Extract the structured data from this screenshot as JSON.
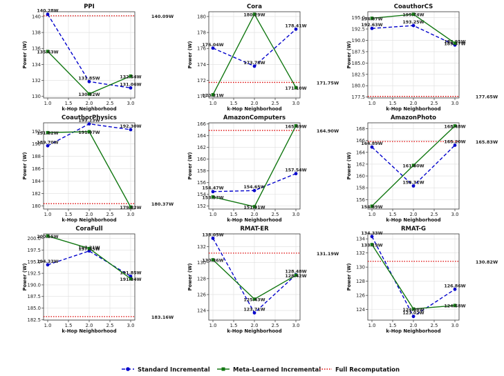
{
  "colors": {
    "standard": "#0000cc",
    "meta": "#117711",
    "full": "#dd0000",
    "grid": "#dddddd",
    "axis": "#333333"
  },
  "legend": {
    "standard": "Standard Incremental",
    "meta": "Meta-Learned Incremental",
    "full": "Full Recomputation"
  },
  "chart_data": [
    {
      "type": "line",
      "title": "PPI",
      "xlabel": "k-Hop Neighborhood",
      "ylabel": "Power (W)",
      "x": [
        1,
        2,
        3
      ],
      "xlim": [
        0.9,
        3.1
      ],
      "ylim": [
        129.8,
        140.6
      ],
      "xticks": [
        "1.0",
        "1.5",
        "2.0",
        "2.5",
        "3.0"
      ],
      "yticks": [
        "130",
        "132",
        "134",
        "136",
        "138",
        "140"
      ],
      "series": [
        {
          "name": "Standard Incremental",
          "values": [
            140.28,
            131.85,
            131.06
          ],
          "labels": [
            "140.28W",
            "131.85W",
            "131.06W"
          ]
        },
        {
          "name": "Meta-Learned Incremental",
          "values": [
            135.63,
            130.32,
            132.54
          ],
          "labels": [
            "135.63W",
            "130.32W",
            "132.54W"
          ]
        }
      ],
      "full_recomputation": 140.09,
      "full_label": "140.09W"
    },
    {
      "type": "line",
      "title": "Cora",
      "xlabel": "k-Hop Neighborhood",
      "ylabel": "Power (W)",
      "x": [
        1,
        2,
        3
      ],
      "xlim": [
        0.9,
        3.1
      ],
      "ylim": [
        169.8,
        180.6
      ],
      "xticks": [
        "1.0",
        "1.5",
        "2.0",
        "2.5",
        "3.0"
      ],
      "yticks": [
        "170",
        "172",
        "174",
        "176",
        "178",
        "180"
      ],
      "series": [
        {
          "name": "Standard Incremental",
          "values": [
            176.04,
            173.78,
            178.41
          ],
          "labels": [
            "176.04W",
            "173.78W",
            "178.41W"
          ]
        },
        {
          "name": "Meta-Learned Incremental",
          "values": [
            170.21,
            180.29,
            171.1
          ],
          "labels": [
            "170.21W",
            "180.29W",
            "171.10W"
          ]
        }
      ],
      "full_recomputation": 171.75,
      "full_label": "171.75W"
    },
    {
      "type": "line",
      "title": "CoauthorCS",
      "xlabel": "k-Hop Neighborhood",
      "ylabel": "Power (W)",
      "x": [
        1,
        2,
        3
      ],
      "xlim": [
        0.9,
        3.1
      ],
      "ylim": [
        177.3,
        196.3
      ],
      "xticks": [
        "1.0",
        "1.5",
        "2.0",
        "2.5",
        "3.0"
      ],
      "yticks": [
        "177.5",
        "180.0",
        "182.5",
        "185.0",
        "187.5",
        "190.0",
        "192.5",
        "195.0"
      ],
      "series": [
        {
          "name": "Standard Incremental",
          "values": [
            192.63,
            193.25,
            188.95
          ],
          "labels": [
            "192.63W",
            "193.25W",
            "188.95W"
          ]
        },
        {
          "name": "Meta-Learned Incremental",
          "values": [
            194.87,
            195.74,
            189.37
          ],
          "labels": [
            "194.87W",
            "195.74W",
            "189.37W"
          ]
        }
      ],
      "full_recomputation": 177.65,
      "full_label": "177.65W"
    },
    {
      "type": "line",
      "title": "CoauthorPhysics",
      "xlabel": "k-Hop Neighborhood",
      "ylabel": "Power (W)",
      "x": [
        1,
        2,
        3
      ],
      "xlim": [
        0.9,
        3.1
      ],
      "ylim": [
        179.5,
        193.4
      ],
      "xticks": [
        "1.0",
        "1.5",
        "2.0",
        "2.5",
        "3.0"
      ],
      "yticks": [
        "180",
        "182",
        "184",
        "186",
        "188",
        "190",
        "192"
      ],
      "series": [
        {
          "name": "Standard Incremental",
          "values": [
            189.7,
            193.23,
            192.3
          ],
          "labels": [
            "189.70W",
            "193.23W",
            "192.30W"
          ]
        },
        {
          "name": "Meta-Learned Incremental",
          "values": [
            191.82,
            191.97,
            179.82
          ],
          "labels": [
            "191.82W",
            "191.97W",
            "179.82W"
          ]
        }
      ],
      "full_recomputation": 180.37,
      "full_label": "180.37W"
    },
    {
      "type": "line",
      "title": "AmazonComputers",
      "xlabel": "k-Hop Neighborhood",
      "ylabel": "Power (W)",
      "x": [
        1,
        2,
        3
      ],
      "xlim": [
        0.9,
        3.1
      ],
      "ylim": [
        151.5,
        166.2
      ],
      "xticks": [
        "1.0",
        "1.5",
        "2.0",
        "2.5",
        "3.0"
      ],
      "yticks": [
        "152",
        "154",
        "156",
        "158",
        "160",
        "162",
        "164",
        "166"
      ],
      "series": [
        {
          "name": "Standard Incremental",
          "values": [
            154.47,
            154.65,
            157.54
          ],
          "labels": [
            "154.47W",
            "154.65W",
            "157.54W"
          ]
        },
        {
          "name": "Meta-Learned Incremental",
          "values": [
            153.57,
            151.91,
            165.69
          ],
          "labels": [
            "153.57W",
            "151.91W",
            "165.69W"
          ]
        }
      ],
      "full_recomputation": 164.9,
      "full_label": "164.90W"
    },
    {
      "type": "line",
      "title": "AmazonPhoto",
      "xlabel": "k-Hop Neighborhood",
      "ylabel": "Power (W)",
      "x": [
        1,
        2,
        3
      ],
      "xlim": [
        0.9,
        3.1
      ],
      "ylim": [
        154.4,
        169.0
      ],
      "xticks": [
        "1.0",
        "1.5",
        "2.0",
        "2.5",
        "3.0"
      ],
      "yticks": [
        "156",
        "158",
        "160",
        "162",
        "164",
        "166",
        "168"
      ],
      "series": [
        {
          "name": "Standard Incremental",
          "values": [
            164.89,
            158.31,
            165.2
          ],
          "labels": [
            "164.89W",
            "158.31W",
            "165.20W"
          ]
        },
        {
          "name": "Meta-Learned Incremental",
          "values": [
            154.89,
            161.8,
            168.48
          ],
          "labels": [
            "154.89W",
            "161.80W",
            "168.48W"
          ]
        }
      ],
      "full_recomputation": 165.83,
      "full_label": "165.83W"
    },
    {
      "type": "line",
      "title": "CoraFull",
      "xlabel": "k-Hop Neighborhood",
      "ylabel": "Power (W)",
      "x": [
        1,
        2,
        3
      ],
      "xlim": [
        0.9,
        3.1
      ],
      "ylim": [
        182.4,
        201.0
      ],
      "xticks": [
        "1.0",
        "1.5",
        "2.0",
        "2.5",
        "3.0"
      ],
      "yticks": [
        "182.5",
        "185.0",
        "187.5",
        "190.0",
        "192.5",
        "195.0",
        "197.5",
        "200.0"
      ],
      "series": [
        {
          "name": "Standard Incremental",
          "values": [
            194.33,
            197.31,
            191.85
          ],
          "labels": [
            "194.33W",
            "197.31W",
            "191.85W"
          ]
        },
        {
          "name": "Meta-Learned Incremental",
          "values": [
            200.55,
            197.85,
            191.34
          ],
          "labels": [
            "200.55W",
            "197.85W",
            "191.34W"
          ]
        }
      ],
      "full_recomputation": 183.16,
      "full_label": "183.16W"
    },
    {
      "type": "line",
      "title": "RMAT-ER",
      "xlabel": "k-Hop Neighborhood",
      "ylabel": "Power (W)",
      "x": [
        1,
        2,
        3
      ],
      "xlim": [
        0.9,
        3.1
      ],
      "ylim": [
        122.8,
        133.6
      ],
      "xticks": [
        "1.0",
        "1.5",
        "2.0",
        "2.5",
        "3.0"
      ],
      "yticks": [
        "124",
        "126",
        "128",
        "130",
        "132"
      ],
      "series": [
        {
          "name": "Standard Incremental",
          "values": [
            133.05,
            123.71,
            128.48
          ],
          "labels": [
            "133.05W",
            "123.71W",
            "128.48W"
          ]
        },
        {
          "name": "Meta-Learned Incremental",
          "values": [
            130.36,
            125.43,
            128.42
          ],
          "labels": [
            "130.36W",
            "125.43W",
            "128.42W"
          ]
        }
      ],
      "full_recomputation": 131.19,
      "full_label": "131.19W"
    },
    {
      "type": "line",
      "title": "RMAT-G",
      "xlabel": "k-Hop Neighborhood",
      "ylabel": "Power (W)",
      "x": [
        1,
        2,
        3
      ],
      "xlim": [
        0.9,
        3.1
      ],
      "ylim": [
        122.5,
        134.7
      ],
      "xticks": [
        "1.0",
        "1.5",
        "2.0",
        "2.5",
        "3.0"
      ],
      "yticks": [
        "124",
        "126",
        "128",
        "130",
        "132",
        "134"
      ],
      "series": [
        {
          "name": "Standard Incremental",
          "values": [
            134.33,
            123.02,
            126.86
          ],
          "labels": [
            "134.33W",
            "123.02W",
            "126.86W"
          ]
        },
        {
          "name": "Meta-Learned Incremental",
          "values": [
            133.19,
            124.08,
            124.58
          ],
          "labels": [
            "133.19W",
            "124.08W",
            "124.58W"
          ]
        }
      ],
      "full_recomputation": 130.82,
      "full_label": "130.82W"
    }
  ]
}
